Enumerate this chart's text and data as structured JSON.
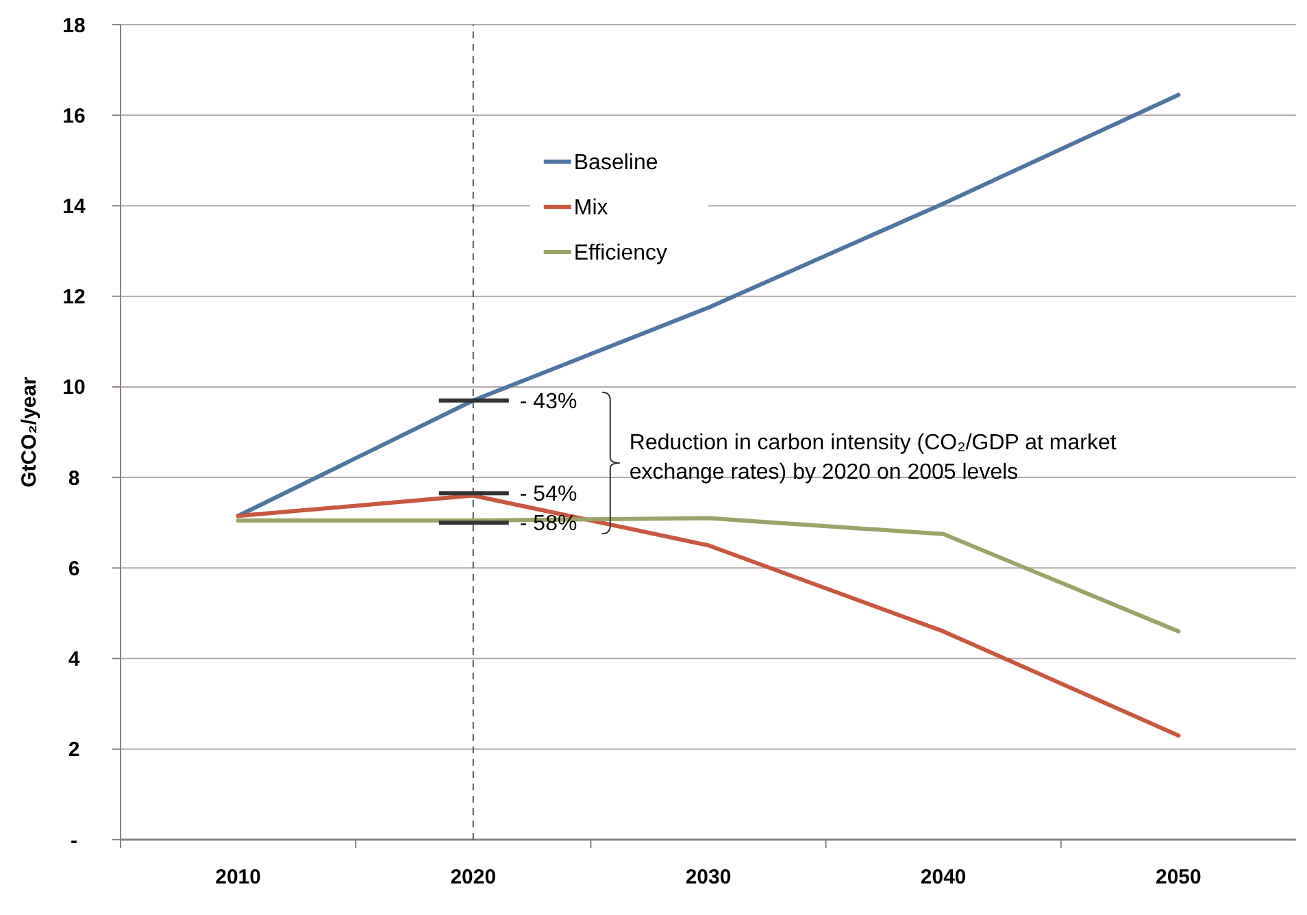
{
  "chart_data": {
    "type": "line",
    "ylabel": "GtCO₂/year",
    "categories": [
      "2010",
      "2020",
      "2030",
      "2040",
      "2050"
    ],
    "series": [
      {
        "name": "Baseline",
        "color": "#4f76a2",
        "values": [
          7.15,
          9.7,
          11.75,
          14.05,
          16.45
        ]
      },
      {
        "name": "Mix",
        "color": "#c8583e",
        "values": [
          7.15,
          7.6,
          6.5,
          4.6,
          2.3
        ]
      },
      {
        "name": "Efficiency",
        "color": "#9aa468",
        "values": [
          7.05,
          7.05,
          7.1,
          6.75,
          4.6
        ]
      }
    ],
    "ylim": [
      0,
      18
    ],
    "yticks": [
      {
        "value": 0,
        "label": "-"
      },
      2,
      4,
      6,
      8,
      10,
      12,
      14,
      16,
      18
    ],
    "grid": "y",
    "legend": "top",
    "marker": "none",
    "line_style": "solid",
    "ref_lines": [
      {
        "axis": "x",
        "value": "2020",
        "color": "#555555",
        "line_style": "dashed"
      }
    ],
    "annotations": [
      {
        "text": "- 43%",
        "x": "2020",
        "y": 9.7
      },
      {
        "text": "- 54%",
        "x": "2020",
        "y": 7.65
      },
      {
        "text": "- 58%",
        "x": "2020",
        "y": 7.0
      },
      "Reduction in carbon intensity (CO₂/GDP at market exchange rates) by 2020 on 2005 levels"
    ]
  }
}
